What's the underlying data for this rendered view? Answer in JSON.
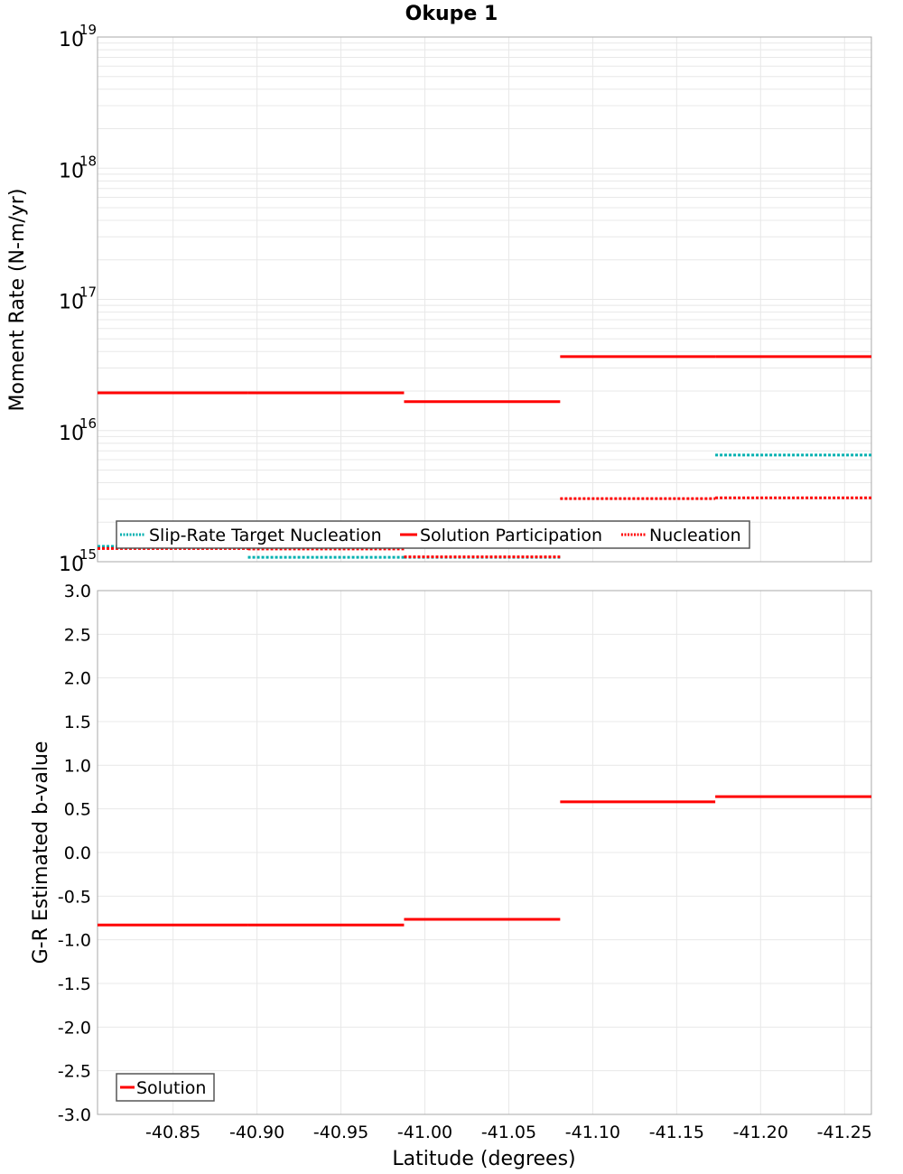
{
  "chart_data": [
    {
      "type": "line",
      "title": "Okupe 1",
      "ylabel": "Moment Rate (N-m/yr)",
      "yscale": "log",
      "ylim": [
        1000000000000000.0,
        1e+19
      ],
      "xlim": [
        -40.805,
        -41.266
      ],
      "grid": true,
      "ytick_exponents": [
        "15",
        "16",
        "17",
        "18",
        "19"
      ],
      "ytick_base": "10",
      "legend_position": "bottom-left",
      "segment_edges": [
        -40.805,
        -40.8946,
        -40.9876,
        -41.0806,
        -41.173,
        -41.266
      ],
      "series": [
        {
          "name": "Slip-Rate Target Nucleation",
          "color": "#00b0b0",
          "style": "dotted",
          "values": [
            1310000000000000.0,
            1080000000000000.0,
            1080000000000000.0,
            null,
            6500000000000000.0
          ]
        },
        {
          "name": "Solution Participation",
          "color": "#ff0000",
          "style": "solid",
          "values": [
            1.94e+16,
            1.94e+16,
            1.66e+16,
            3.66e+16,
            3.66e+16
          ]
        },
        {
          "name": "Nucleation",
          "color": "#ff0000",
          "style": "dotted",
          "values": [
            1260000000000000.0,
            1250000000000000.0,
            1090000000000000.0,
            3030000000000000.0,
            3070000000000000.0
          ]
        }
      ]
    },
    {
      "type": "line",
      "xlabel": "Latitude (degrees)",
      "ylabel": "G-R Estimated b-value",
      "ylim": [
        -3.0,
        3.0
      ],
      "xlim": [
        -40.805,
        -41.266
      ],
      "grid": true,
      "yticks": [
        "3.0",
        "2.5",
        "2.0",
        "1.5",
        "1.0",
        "0.5",
        "0.0",
        "-0.5",
        "-1.0",
        "-1.5",
        "-2.0",
        "-2.5",
        "-3.0"
      ],
      "xticks": [
        "-40.85",
        "-40.90",
        "-40.95",
        "-41.00",
        "-41.05",
        "-41.10",
        "-41.15",
        "-41.20",
        "-41.25"
      ],
      "legend_position": "bottom-left",
      "segment_edges": [
        -40.805,
        -40.8946,
        -40.9876,
        -41.0806,
        -41.173,
        -41.266
      ],
      "series": [
        {
          "name": "Solution",
          "color": "#ff0000",
          "style": "solid",
          "values": [
            -0.83,
            -0.83,
            -0.765,
            0.58,
            0.64
          ]
        }
      ]
    }
  ]
}
